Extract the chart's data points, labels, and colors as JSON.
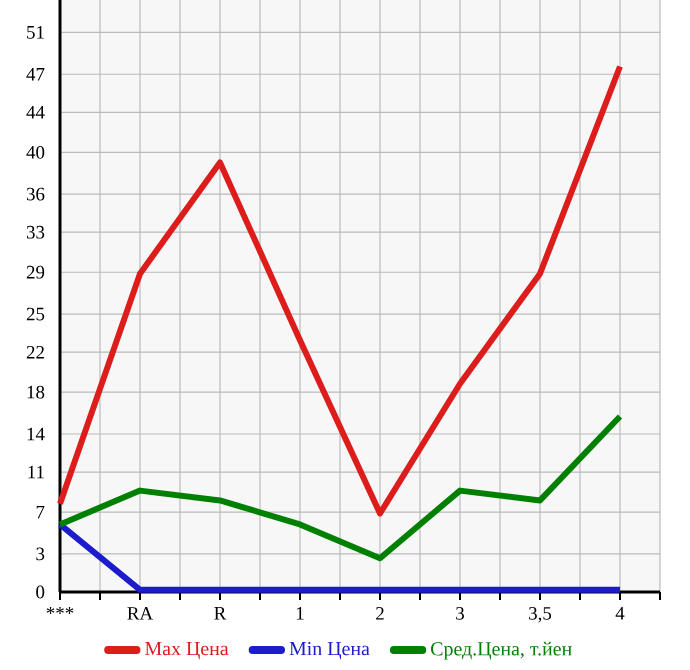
{
  "chart_data": {
    "type": "line",
    "categories": [
      "***",
      "RA",
      "R",
      "1",
      "2",
      "3",
      "3,5",
      "4"
    ],
    "series": [
      {
        "name": "Max Цена",
        "color": "#dd1c1c",
        "values": [
          8.1,
          29.2,
          39.4,
          23.1,
          7.2,
          19.1,
          29.2,
          48.2
        ]
      },
      {
        "name": "Min Цена",
        "color": "#1c1ccc",
        "values": [
          6.2,
          0.2,
          0.2,
          0.2,
          0.2,
          0.2,
          0.2,
          0.2
        ]
      },
      {
        "name": "Сред.Цена, т.йен",
        "color": "#008000",
        "values": [
          6.2,
          9.3,
          8.4,
          6.2,
          3.1,
          9.3,
          8.4,
          16.1
        ]
      }
    ],
    "ylim": [
      0,
      54.3
    ],
    "yticks": [
      0,
      {
        "value": 3.49,
        "label": "3"
      },
      {
        "value": 7.33,
        "label": "7"
      },
      11,
      {
        "value": 14.49,
        "label": "14"
      },
      {
        "value": 18.33,
        "label": "18"
      },
      22,
      {
        "value": 25.49,
        "label": "25"
      },
      {
        "value": 29.33,
        "label": "29"
      },
      33,
      {
        "value": 36.49,
        "label": "36"
      },
      {
        "value": 40.33,
        "label": "40"
      },
      44,
      {
        "value": 47.49,
        "label": "47"
      },
      {
        "value": 51.33,
        "label": "51"
      }
    ],
    "grid": true,
    "legend": "bottom",
    "marker": "none",
    "line_style": "solid"
  }
}
